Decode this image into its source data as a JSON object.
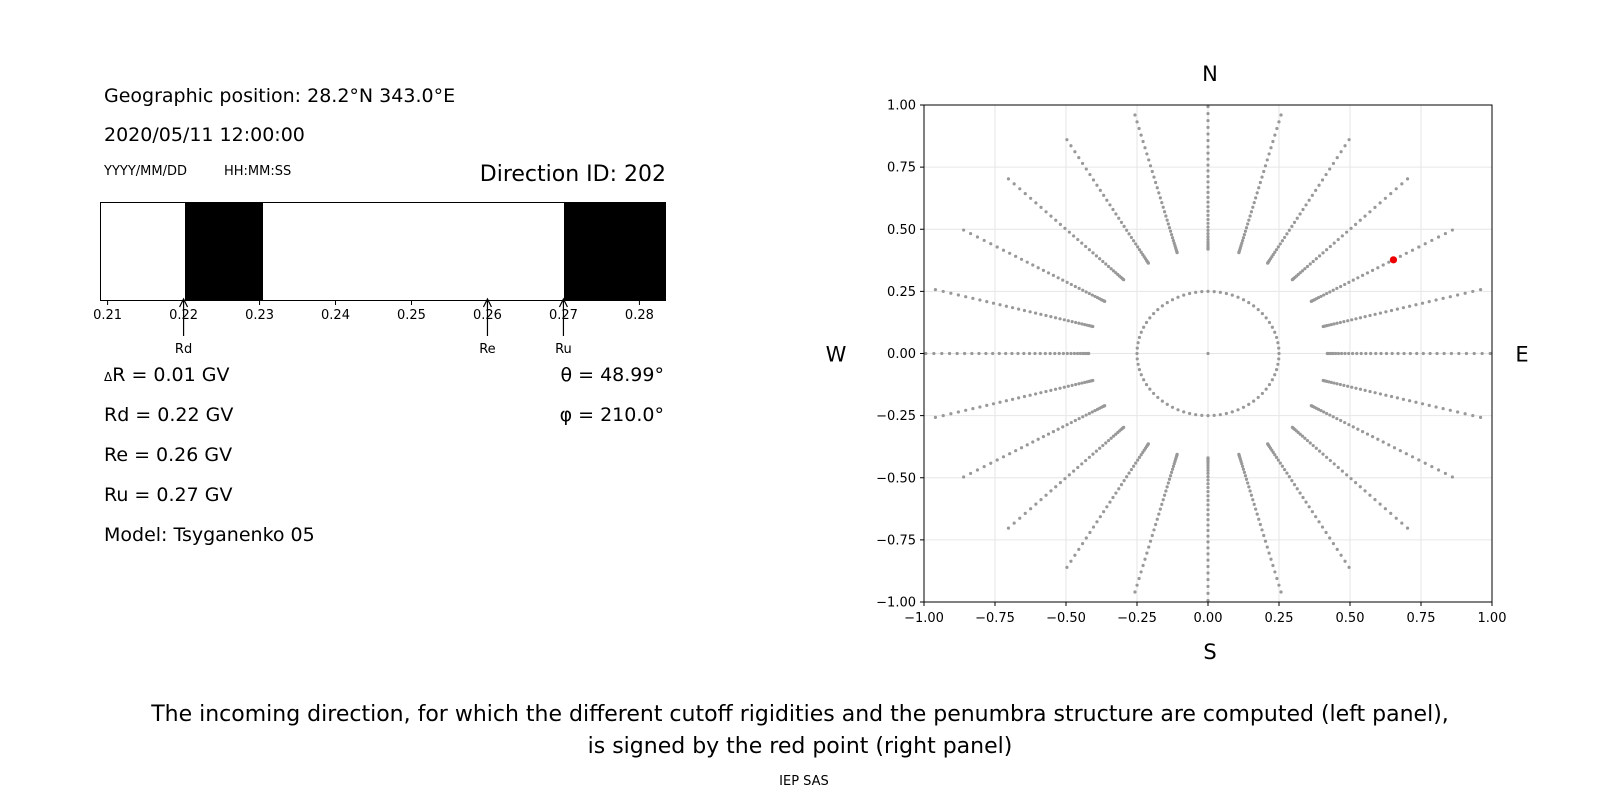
{
  "left": {
    "geo_position": "Geographic position: 28.2°N 343.0°E",
    "datetime": "2020/05/11 12:00:00",
    "date_format": "YYYY/MM/DD",
    "time_format": "HH:MM:SS",
    "direction_id": "Direction ID: 202",
    "delta_r": "R = 0.01 GV",
    "delta_symbol": "Δ",
    "rd": "Rd = 0.22 GV",
    "re": "Re = 0.26 GV",
    "ru": "Ru = 0.27 GV",
    "model": "Model: Tsyganenko 05",
    "theta": "θ = 48.99°",
    "phi": "φ = 210.0°"
  },
  "caption": {
    "line1": "The incoming direction, for which the different cutoff rigidities and the penumbra structure are computed (left panel),",
    "line2": "is signed by the red point (right panel)",
    "credit": "IEP SAS"
  },
  "chart_data": [
    {
      "type": "penumbra-bar",
      "xlim": [
        0.209,
        0.2835
      ],
      "ticks": [
        0.21,
        0.22,
        0.23,
        0.24,
        0.25,
        0.26,
        0.27,
        0.28
      ],
      "tick_labels": [
        "0.21",
        "0.22",
        "0.23",
        "0.24",
        "0.25",
        "0.26",
        "0.27",
        "0.28"
      ],
      "forbidden_bands": [
        [
          0.22,
          0.23
        ],
        [
          0.27,
          0.2835
        ]
      ],
      "markers": [
        {
          "label": "Rd",
          "value": 0.22
        },
        {
          "label": "Re",
          "value": 0.26
        },
        {
          "label": "Ru",
          "value": 0.27
        }
      ]
    },
    {
      "type": "scatter",
      "xlim": [
        -1.0,
        1.0
      ],
      "ylim": [
        -1.0,
        1.0
      ],
      "ticks": [
        -1.0,
        -0.75,
        -0.5,
        -0.25,
        0.0,
        0.25,
        0.5,
        0.75,
        1.0
      ],
      "tick_labels": [
        "−1.00",
        "−0.75",
        "−0.50",
        "−0.25",
        "0.00",
        "0.25",
        "0.50",
        "0.75",
        "1.00"
      ],
      "grid": true,
      "compass": {
        "north": "N",
        "south": "S",
        "west": "W",
        "east": "E"
      },
      "rings": [
        0.0,
        0.25,
        0.423,
        0.574,
        0.707,
        0.819,
        0.906,
        0.966,
        1.0
      ],
      "spoke_step_deg": 15,
      "points_color": "#999999",
      "selected_point": {
        "x": 0.653,
        "y": 0.377,
        "color": "#ee0000"
      }
    }
  ]
}
